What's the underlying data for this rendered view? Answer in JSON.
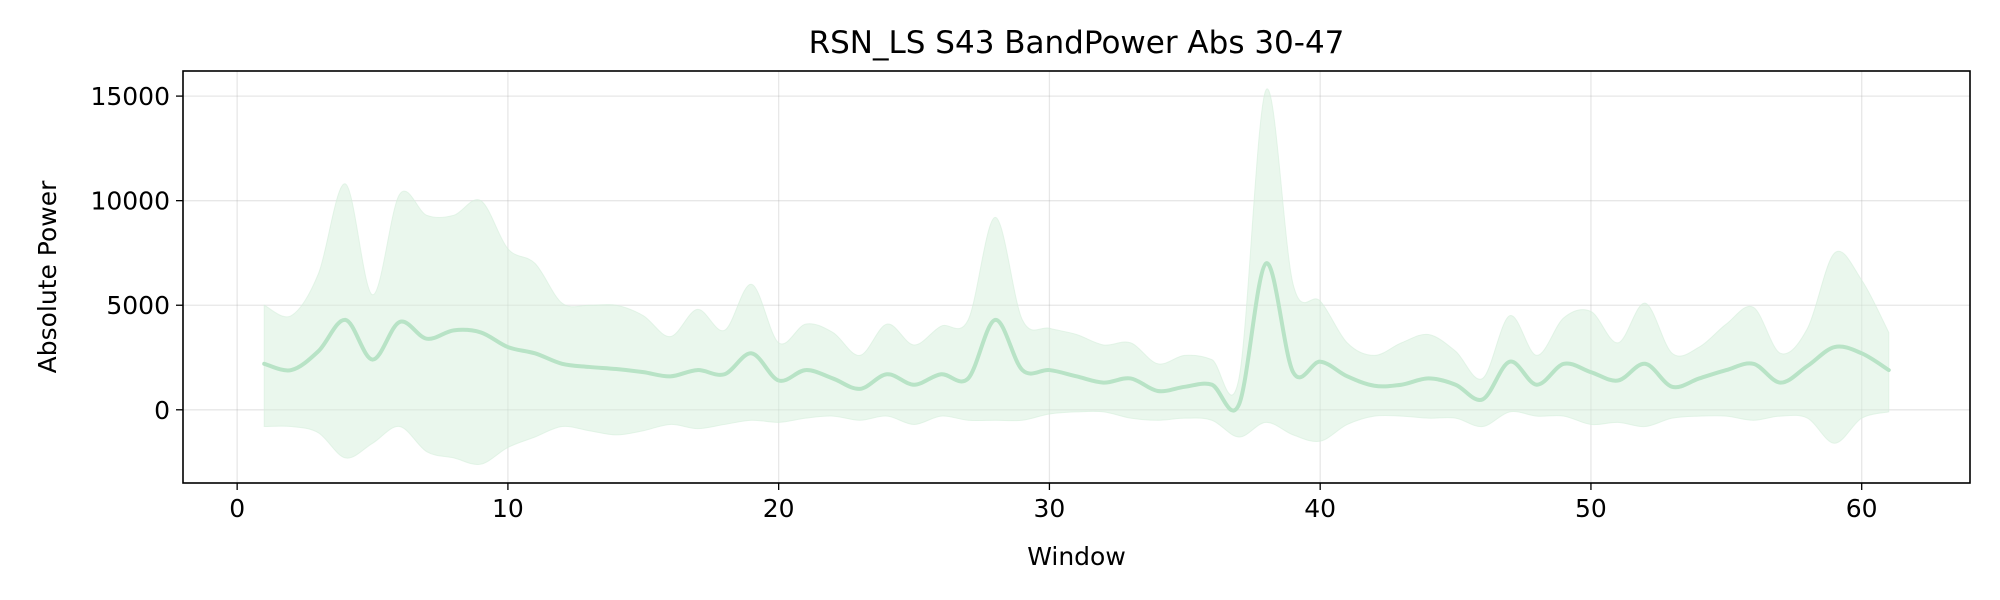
{
  "chart_data": {
    "type": "line",
    "title": "RSN_LS S43 BandPower Abs 30-47",
    "xlabel": "Window",
    "ylabel": "Absolute Power",
    "xlim": [
      -2,
      64
    ],
    "ylim": [
      -3500,
      16200
    ],
    "x_ticks": [
      0,
      10,
      20,
      30,
      40,
      50,
      60
    ],
    "y_ticks": [
      0,
      5000,
      10000,
      15000
    ],
    "grid": true,
    "legend": "none",
    "colors": {
      "line": "#b8e3c6",
      "band": "#d6efdc"
    },
    "series": [
      {
        "x": [
          1,
          2,
          3,
          4,
          5,
          6,
          7,
          8,
          9,
          10,
          11,
          12,
          13,
          14,
          15,
          16,
          17,
          18,
          19,
          20,
          21,
          22,
          23,
          24,
          25,
          26,
          27,
          28,
          29,
          30,
          31,
          32,
          33,
          34,
          35,
          36,
          37,
          38,
          39,
          40,
          41,
          42,
          43,
          44,
          45,
          46,
          47,
          48,
          49,
          50,
          51,
          52,
          53,
          54,
          55,
          56,
          57,
          58,
          59,
          60,
          61
        ],
        "mean": [
          2200,
          1900,
          2800,
          4300,
          2400,
          4200,
          3400,
          3800,
          3700,
          3000,
          2700,
          2200,
          2050,
          1950,
          1800,
          1600,
          1900,
          1700,
          2700,
          1400,
          1900,
          1500,
          1000,
          1700,
          1200,
          1700,
          1500,
          4300,
          1900,
          1900,
          1600,
          1300,
          1500,
          900,
          1100,
          1200,
          250,
          7000,
          1800,
          2300,
          1600,
          1150,
          1200,
          1500,
          1200,
          500,
          2300,
          1200,
          2200,
          1800,
          1400,
          2200,
          1100,
          1500,
          1900,
          2200,
          1300,
          2100,
          3000,
          2700,
          1900
        ],
        "upper": [
          5000,
          4500,
          6500,
          10800,
          5500,
          10300,
          9300,
          9300,
          10000,
          7700,
          7000,
          5100,
          5000,
          5000,
          4500,
          3500,
          4800,
          3800,
          6000,
          3200,
          4100,
          3700,
          2600,
          4100,
          3100,
          4000,
          4300,
          9200,
          4300,
          3900,
          3600,
          3100,
          3200,
          2200,
          2600,
          2400,
          1500,
          15300,
          6000,
          5200,
          3200,
          2600,
          3200,
          3600,
          2800,
          1500,
          4500,
          2600,
          4400,
          4700,
          3200,
          5100,
          2700,
          3000,
          4100,
          4900,
          2700,
          3900,
          7500,
          6200,
          3700
        ],
        "lower": [
          -800,
          -800,
          -1100,
          -2300,
          -1600,
          -800,
          -2000,
          -2300,
          -2600,
          -1800,
          -1300,
          -800,
          -1000,
          -1200,
          -1000,
          -700,
          -900,
          -700,
          -500,
          -600,
          -400,
          -300,
          -500,
          -300,
          -700,
          -300,
          -500,
          -500,
          -500,
          -200,
          -100,
          -100,
          -400,
          -500,
          -400,
          -500,
          -1300,
          -600,
          -1200,
          -1500,
          -700,
          -300,
          -300,
          -400,
          -400,
          -800,
          -100,
          -300,
          -300,
          -700,
          -600,
          -800,
          -400,
          -300,
          -300,
          -500,
          -300,
          -400,
          -1600,
          -400,
          -100
        ]
      }
    ]
  }
}
